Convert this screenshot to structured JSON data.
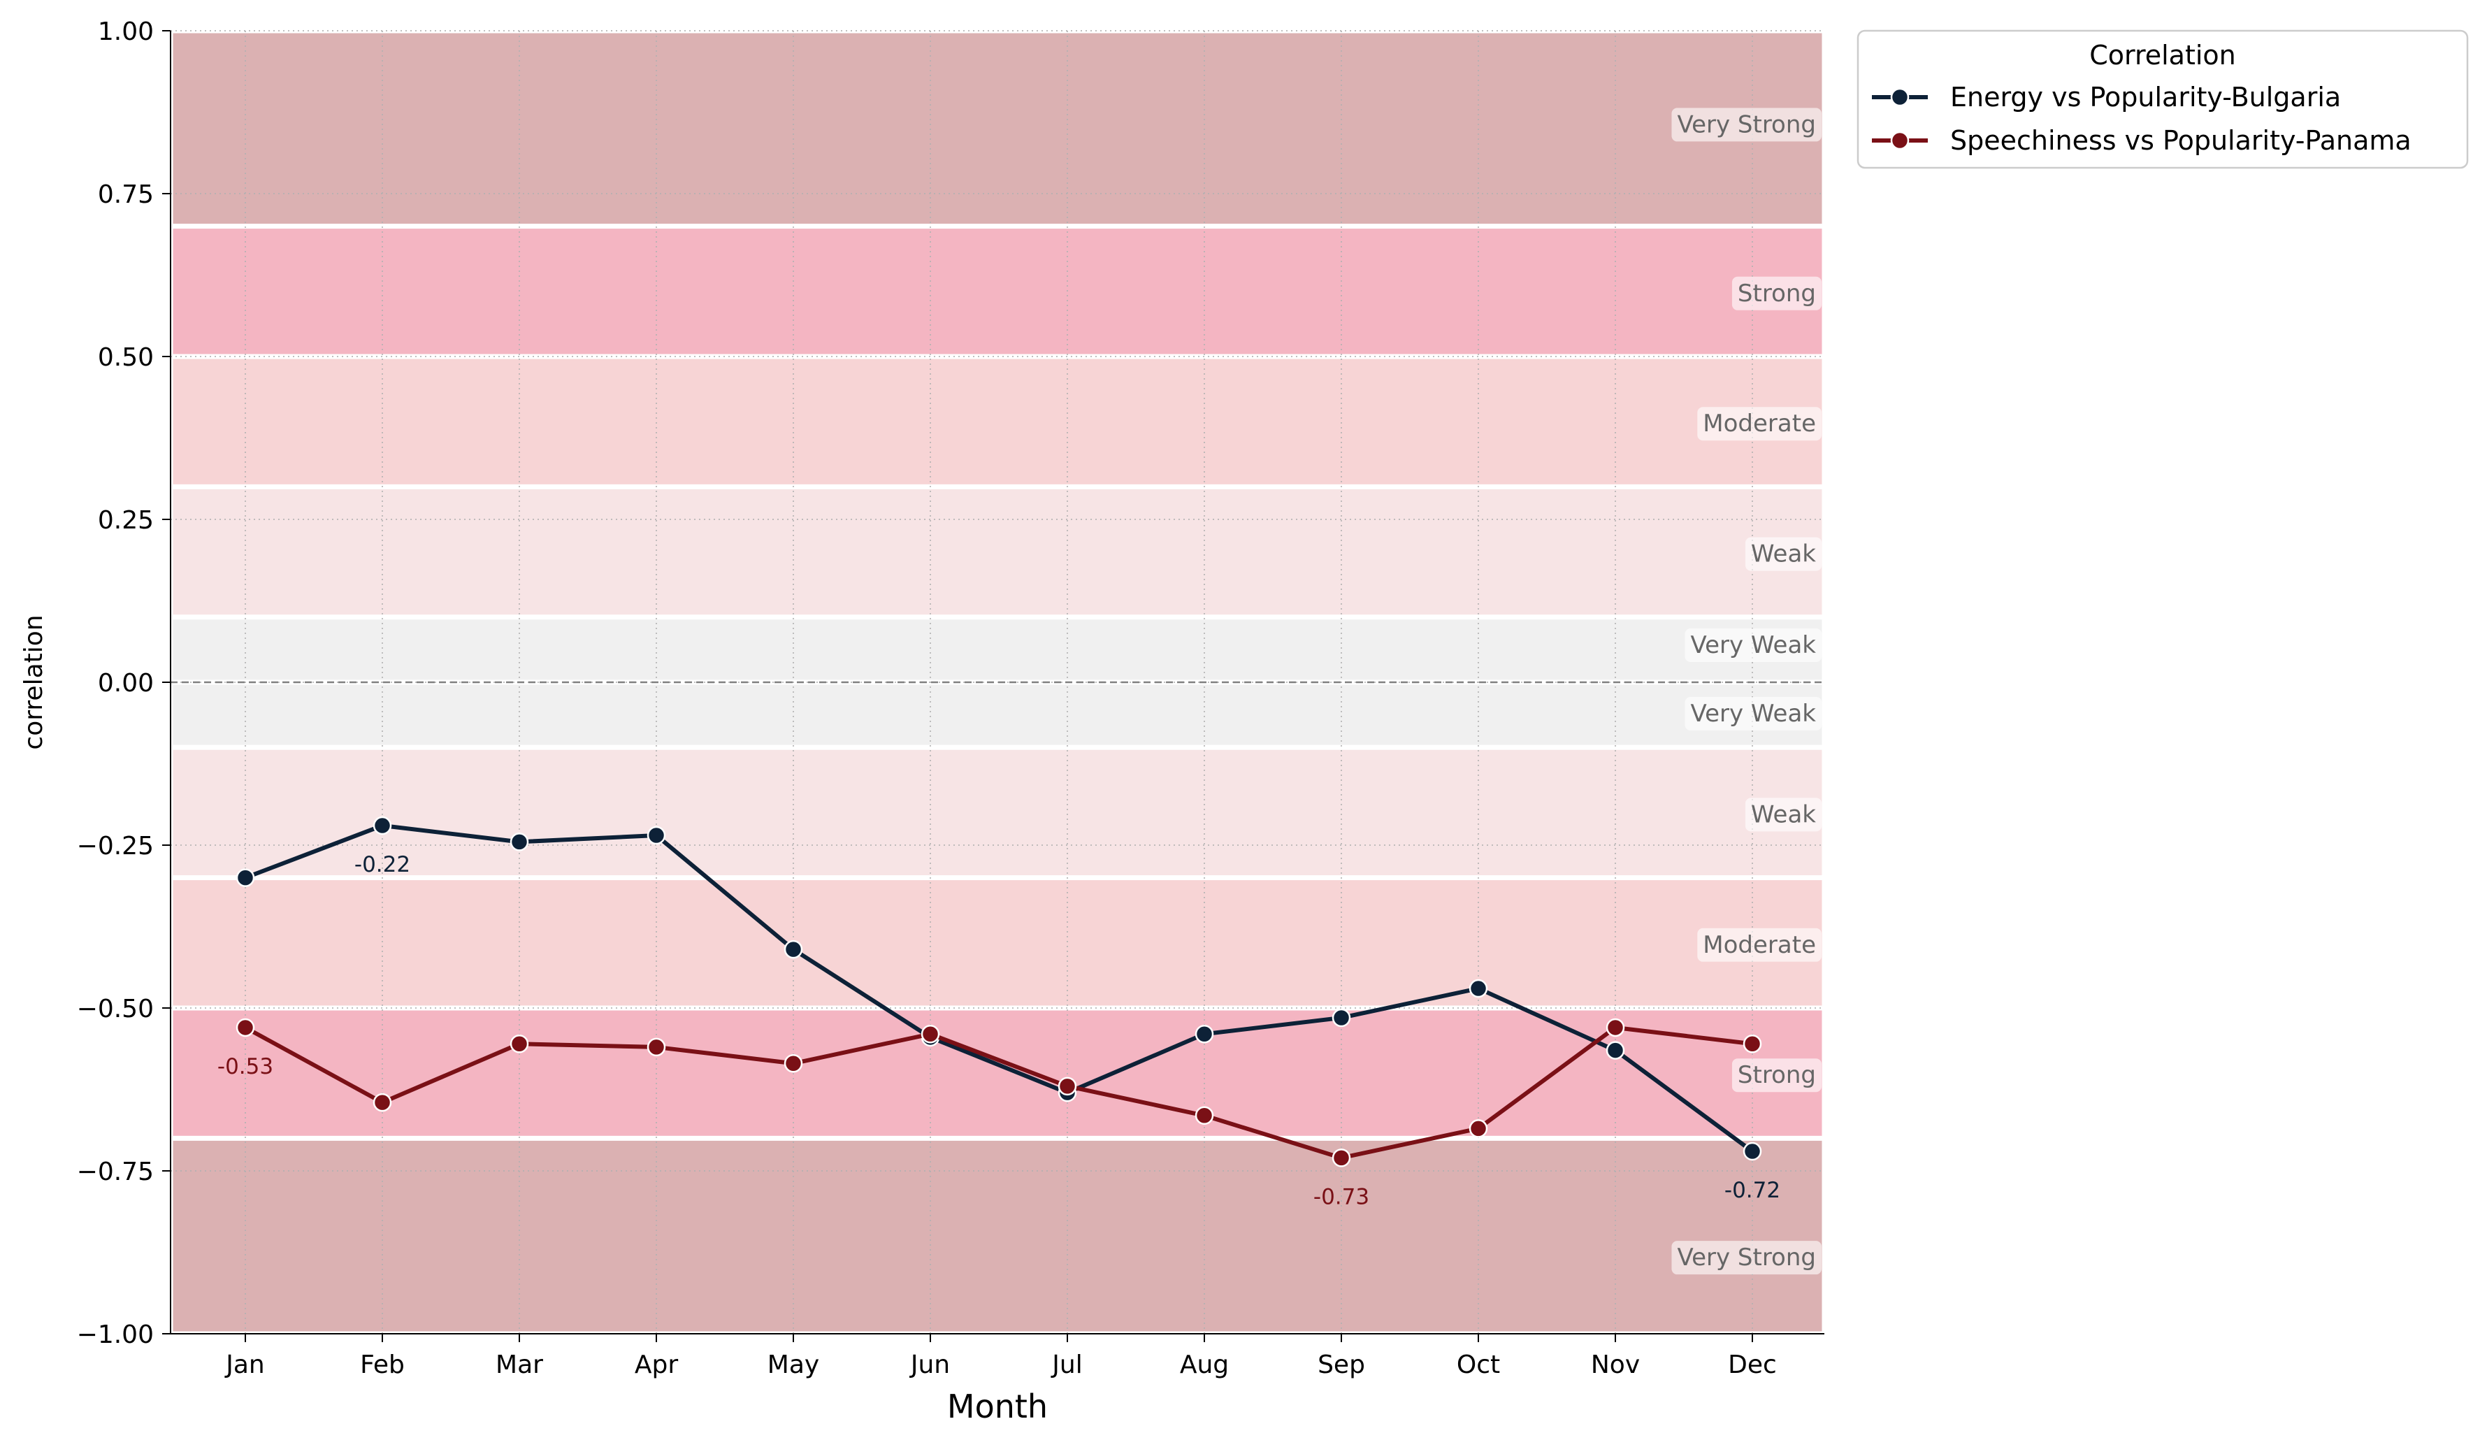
{
  "chart_data": {
    "type": "line",
    "xlabel": "Month",
    "ylabel": "correlation",
    "categories": [
      "Jan",
      "Feb",
      "Mar",
      "Apr",
      "May",
      "Jun",
      "Jul",
      "Aug",
      "Sep",
      "Oct",
      "Nov",
      "Dec"
    ],
    "ylim": [
      -1.0,
      1.0
    ],
    "yticks": [
      -1.0,
      -0.75,
      -0.5,
      -0.25,
      0.0,
      0.25,
      0.5,
      0.75,
      1.0
    ],
    "ytick_labels": [
      "−1.00",
      "−0.75",
      "−0.50",
      "−0.25",
      "0.00",
      "0.25",
      "0.50",
      "0.75",
      "1.00"
    ],
    "grid": true,
    "zero_line": true,
    "legend": {
      "title": "Correlation",
      "placement": "outside-top-right"
    },
    "series": [
      {
        "name": "Energy vs Popularity-Bulgaria",
        "color": "#0d2137",
        "values": [
          -0.3,
          -0.22,
          -0.245,
          -0.235,
          -0.41,
          -0.545,
          -0.63,
          -0.54,
          -0.515,
          -0.47,
          -0.565,
          -0.72
        ]
      },
      {
        "name": "Speechiness vs Popularity-Panama",
        "color": "#7a1016",
        "values": [
          -0.53,
          -0.645,
          -0.555,
          -0.56,
          -0.585,
          -0.54,
          -0.62,
          -0.665,
          -0.73,
          -0.685,
          -0.53,
          -0.555
        ]
      }
    ],
    "annotations": [
      {
        "series": 0,
        "index": 1,
        "text": "-0.22"
      },
      {
        "series": 0,
        "index": 11,
        "text": "-0.72"
      },
      {
        "series": 1,
        "index": 0,
        "text": "-0.53"
      },
      {
        "series": 1,
        "index": 8,
        "text": "-0.73"
      }
    ],
    "bands": [
      {
        "from": 0.7,
        "to": 1.0,
        "label": "Very Strong",
        "color": "#dbb1b2"
      },
      {
        "from": 0.5,
        "to": 0.7,
        "label": "Strong",
        "color": "#f4b5c2"
      },
      {
        "from": 0.3,
        "to": 0.5,
        "label": "Moderate",
        "color": "#f7d4d5"
      },
      {
        "from": 0.1,
        "to": 0.3,
        "label": "Weak",
        "color": "#f7e4e5"
      },
      {
        "from": 0.0,
        "to": 0.1,
        "label": "Very Weak",
        "color": "#f0f0f0"
      },
      {
        "from": -0.1,
        "to": 0.0,
        "label": "Very Weak",
        "color": "#f0f0f0"
      },
      {
        "from": -0.3,
        "to": -0.1,
        "label": "Weak",
        "color": "#f7e4e5"
      },
      {
        "from": -0.5,
        "to": -0.3,
        "label": "Moderate",
        "color": "#f7d4d5"
      },
      {
        "from": -0.7,
        "to": -0.5,
        "label": "Strong",
        "color": "#f4b5c2"
      },
      {
        "from": -1.0,
        "to": -0.7,
        "label": "Very Strong",
        "color": "#dbb1b2"
      }
    ]
  }
}
